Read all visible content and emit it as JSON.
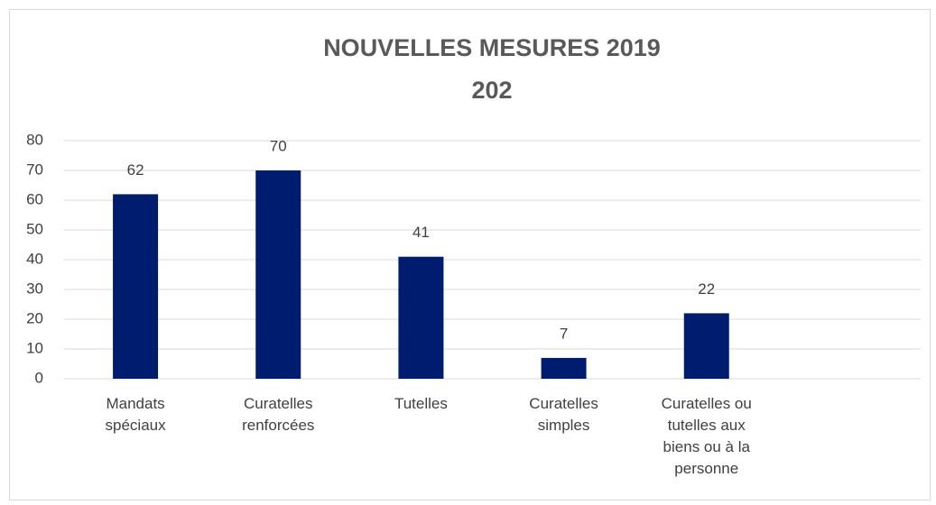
{
  "chart_data": {
    "type": "bar",
    "title": "NOUVELLES MESURES 2019",
    "subtitle": "202",
    "categories": [
      "Mandats spéciaux",
      "Curatelles renforcées",
      "Tutelles",
      "Curatelles simples",
      "Curatelles ou tutelles aux biens ou à la personne",
      null
    ],
    "values": [
      62,
      70,
      41,
      7,
      22,
      null
    ],
    "color": "#001c6e",
    "ylim": [
      0,
      80
    ],
    "yticks": [
      0,
      10,
      20,
      30,
      40,
      50,
      60,
      70,
      80
    ],
    "grid": true
  }
}
